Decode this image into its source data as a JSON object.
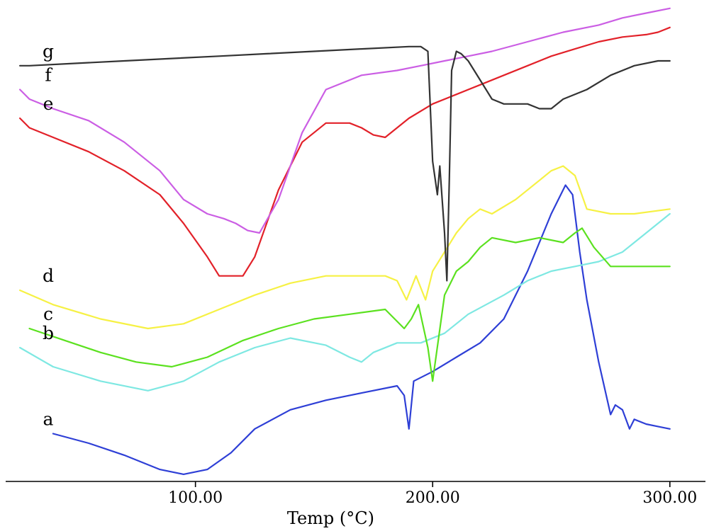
{
  "chart_data": {
    "type": "line",
    "title": "",
    "xlabel": "Temp (°C)",
    "ylabel": "",
    "xlim": [
      20,
      315
    ],
    "ylim": [
      0,
      100
    ],
    "xticks": [
      100,
      200,
      300
    ],
    "xtick_labels": [
      "100.00",
      "200.00",
      "300.00"
    ],
    "grid": false,
    "legend": "none",
    "series": [
      {
        "name": "a",
        "color": "#2e3fd6",
        "points": [
          [
            40,
            90
          ],
          [
            55,
            92
          ],
          [
            70,
            94.5
          ],
          [
            85,
            97.5
          ],
          [
            95,
            98.5
          ],
          [
            105,
            97.5
          ],
          [
            115,
            94
          ],
          [
            125,
            89
          ],
          [
            140,
            85
          ],
          [
            155,
            83
          ],
          [
            170,
            81.5
          ],
          [
            185,
            80
          ],
          [
            188,
            82
          ],
          [
            190,
            89
          ],
          [
            192,
            79
          ],
          [
            200,
            77
          ],
          [
            210,
            74
          ],
          [
            220,
            71
          ],
          [
            230,
            66
          ],
          [
            240,
            56
          ],
          [
            250,
            44
          ],
          [
            256,
            38
          ],
          [
            259,
            40
          ],
          [
            262,
            52
          ],
          [
            265,
            62
          ],
          [
            270,
            75
          ],
          [
            275,
            86
          ],
          [
            277,
            84
          ],
          [
            280,
            85
          ],
          [
            283,
            89
          ],
          [
            285,
            87
          ],
          [
            290,
            88
          ],
          [
            295,
            88.5
          ],
          [
            300,
            89
          ]
        ]
      },
      {
        "name": "b",
        "color": "#7ee8e2",
        "points": [
          [
            26,
            72
          ],
          [
            40,
            76
          ],
          [
            60,
            79
          ],
          [
            80,
            81
          ],
          [
            95,
            79
          ],
          [
            110,
            75
          ],
          [
            125,
            72
          ],
          [
            140,
            70
          ],
          [
            155,
            71.5
          ],
          [
            165,
            74
          ],
          [
            170,
            75
          ],
          [
            175,
            73
          ],
          [
            185,
            71
          ],
          [
            195,
            71
          ],
          [
            205,
            69
          ],
          [
            215,
            65
          ],
          [
            230,
            61
          ],
          [
            240,
            58
          ],
          [
            250,
            56
          ],
          [
            260,
            55
          ],
          [
            270,
            54
          ],
          [
            280,
            52
          ],
          [
            290,
            48
          ],
          [
            300,
            44
          ]
        ]
      },
      {
        "name": "c",
        "color": "#5be11f",
        "points": [
          [
            30,
            68
          ],
          [
            45,
            70.5
          ],
          [
            60,
            73
          ],
          [
            75,
            75
          ],
          [
            90,
            76
          ],
          [
            105,
            74
          ],
          [
            120,
            70.5
          ],
          [
            135,
            68
          ],
          [
            150,
            66
          ],
          [
            165,
            65
          ],
          [
            180,
            64
          ],
          [
            188,
            68
          ],
          [
            191,
            66
          ],
          [
            194,
            63
          ],
          [
            198,
            72
          ],
          [
            200,
            79
          ],
          [
            205,
            61
          ],
          [
            210,
            56
          ],
          [
            215,
            54
          ],
          [
            220,
            51
          ],
          [
            225,
            49
          ],
          [
            235,
            50
          ],
          [
            245,
            49
          ],
          [
            255,
            50
          ],
          [
            260,
            48
          ],
          [
            263,
            47
          ],
          [
            268,
            51
          ],
          [
            275,
            55
          ],
          [
            285,
            55
          ],
          [
            300,
            55
          ]
        ]
      },
      {
        "name": "d",
        "color": "#f6f144",
        "points": [
          [
            26,
            60
          ],
          [
            40,
            63
          ],
          [
            60,
            66
          ],
          [
            80,
            68
          ],
          [
            95,
            67
          ],
          [
            110,
            64
          ],
          [
            125,
            61
          ],
          [
            140,
            58.5
          ],
          [
            155,
            57
          ],
          [
            170,
            57
          ],
          [
            180,
            57
          ],
          [
            185,
            58
          ],
          [
            189,
            62
          ],
          [
            193,
            57
          ],
          [
            197,
            62
          ],
          [
            200,
            56
          ],
          [
            210,
            48
          ],
          [
            215,
            45
          ],
          [
            220,
            43
          ],
          [
            225,
            44
          ],
          [
            235,
            41
          ],
          [
            245,
            37
          ],
          [
            250,
            35
          ],
          [
            255,
            34
          ],
          [
            260,
            36
          ],
          [
            265,
            43
          ],
          [
            275,
            44
          ],
          [
            285,
            44
          ],
          [
            300,
            43
          ]
        ]
      },
      {
        "name": "e",
        "color": "#e22129",
        "points": [
          [
            26,
            24
          ],
          [
            30,
            26
          ],
          [
            40,
            28
          ],
          [
            55,
            31
          ],
          [
            70,
            35
          ],
          [
            85,
            40
          ],
          [
            95,
            46
          ],
          [
            105,
            53
          ],
          [
            110,
            57
          ],
          [
            115,
            57
          ],
          [
            120,
            57
          ],
          [
            125,
            53
          ],
          [
            135,
            39
          ],
          [
            145,
            29
          ],
          [
            155,
            25
          ],
          [
            165,
            25
          ],
          [
            170,
            26
          ],
          [
            175,
            27.5
          ],
          [
            180,
            28
          ],
          [
            190,
            24
          ],
          [
            200,
            21
          ],
          [
            210,
            19
          ],
          [
            220,
            17
          ],
          [
            230,
            15
          ],
          [
            240,
            13
          ],
          [
            250,
            11
          ],
          [
            260,
            9.5
          ],
          [
            270,
            8
          ],
          [
            280,
            7
          ],
          [
            290,
            6.5
          ],
          [
            295,
            6
          ],
          [
            300,
            5
          ]
        ]
      },
      {
        "name": "f",
        "color": "#cb5ee4",
        "points": [
          [
            26,
            18
          ],
          [
            30,
            20
          ],
          [
            40,
            22
          ],
          [
            55,
            24.5
          ],
          [
            70,
            29
          ],
          [
            85,
            35
          ],
          [
            95,
            41
          ],
          [
            105,
            44
          ],
          [
            112,
            45
          ],
          [
            117,
            46
          ],
          [
            122,
            47.5
          ],
          [
            127,
            48
          ],
          [
            135,
            41
          ],
          [
            145,
            27
          ],
          [
            155,
            18
          ],
          [
            170,
            15
          ],
          [
            185,
            14
          ],
          [
            195,
            13
          ],
          [
            205,
            12
          ],
          [
            215,
            11
          ],
          [
            225,
            10
          ],
          [
            240,
            8
          ],
          [
            255,
            6
          ],
          [
            270,
            4.5
          ],
          [
            280,
            3
          ],
          [
            290,
            2
          ],
          [
            300,
            1
          ]
        ]
      },
      {
        "name": "g",
        "color": "#333333",
        "points": [
          [
            26,
            13
          ],
          [
            30,
            13
          ],
          [
            50,
            12.5
          ],
          [
            70,
            12
          ],
          [
            90,
            11.5
          ],
          [
            110,
            11
          ],
          [
            130,
            10.5
          ],
          [
            150,
            10
          ],
          [
            170,
            9.5
          ],
          [
            190,
            9
          ],
          [
            195,
            9
          ],
          [
            198,
            10
          ],
          [
            200,
            33
          ],
          [
            202,
            40
          ],
          [
            203,
            34
          ],
          [
            205,
            48
          ],
          [
            206,
            58
          ],
          [
            207,
            37
          ],
          [
            208,
            14
          ],
          [
            210,
            10
          ],
          [
            212,
            10.5
          ],
          [
            215,
            12
          ],
          [
            220,
            16
          ],
          [
            225,
            20
          ],
          [
            230,
            21
          ],
          [
            240,
            21
          ],
          [
            245,
            22
          ],
          [
            250,
            22
          ],
          [
            255,
            20
          ],
          [
            265,
            18
          ],
          [
            275,
            15
          ],
          [
            285,
            13
          ],
          [
            295,
            12
          ],
          [
            300,
            12
          ]
        ]
      }
    ]
  }
}
